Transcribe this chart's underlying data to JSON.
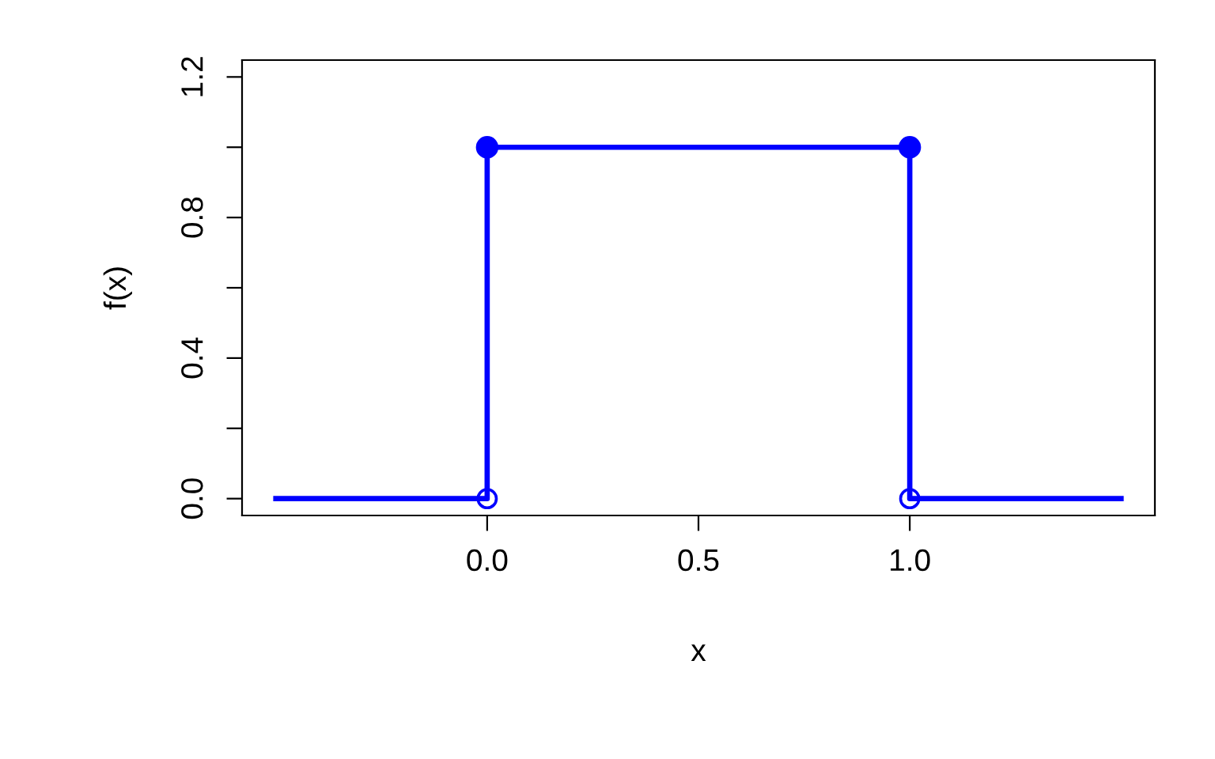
{
  "chart_data": {
    "type": "line",
    "xlabel": "x",
    "ylabel": "f(x)",
    "xlim": [
      -0.58,
      1.58
    ],
    "ylim": [
      -0.048,
      1.248
    ],
    "xticks": [
      {
        "value": 0,
        "label": "0.0"
      },
      0.5,
      {
        "value": 1,
        "label": "1.0"
      }
    ],
    "yticks": [
      {
        "value": 0,
        "label": "0.0"
      },
      {
        "value": 0.2,
        "label": null
      },
      0.4,
      {
        "value": 0.6,
        "label": null
      },
      0.8,
      {
        "value": 1.0,
        "label": null
      },
      1.2
    ],
    "grid": false,
    "legend": false,
    "series": [
      {
        "color": "#0000ff",
        "x": [
          -0.5,
          0,
          0,
          1,
          1,
          1.5
        ],
        "values": [
          0,
          0,
          1,
          1,
          0,
          0
        ],
        "marker": "none",
        "line_style": "solid"
      },
      {
        "type": "scatter",
        "color": "#0000ff",
        "x": [
          0,
          1
        ],
        "values": [
          1,
          1
        ],
        "marker": "circle"
      },
      {
        "type": "scatter",
        "color": "#0000ff",
        "x": [
          0,
          1
        ],
        "values": [
          0,
          0
        ],
        "marker": "circle-open"
      }
    ]
  }
}
